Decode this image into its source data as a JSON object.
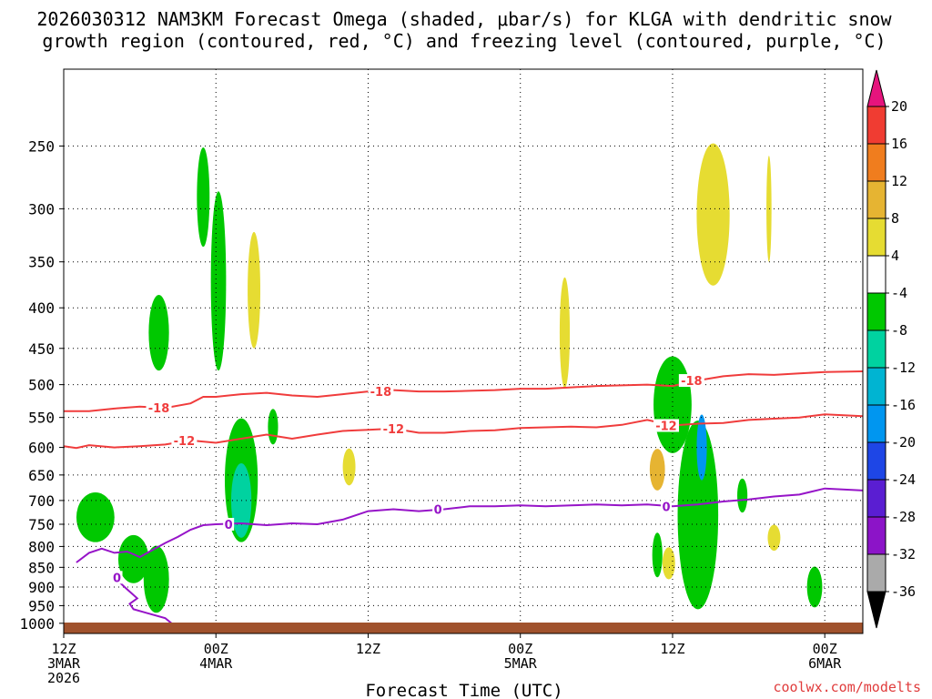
{
  "chart_data": {
    "type": "time-height-cross-section",
    "title_line1": "2026030312 NAM3KM Forecast Omega (shaded, μbar/s) for KLGA with dendritic snow",
    "title_line2": "growth region (contoured, red, °C) and freezing level (contoured, purple, °C)",
    "xlabel": "Forecast Time (UTC)",
    "ylabel": "",
    "credit": "coolwx.com/modelts",
    "x_range_hours": [
      0,
      63
    ],
    "y_range_hpa": [
      1030,
      200
    ],
    "y_ticks": [
      250,
      300,
      350,
      400,
      450,
      500,
      550,
      600,
      650,
      700,
      750,
      800,
      850,
      900,
      950,
      1000
    ],
    "x_ticks": [
      {
        "hour": 0,
        "lines": [
          "12Z",
          "3MAR",
          "2026"
        ]
      },
      {
        "hour": 12,
        "lines": [
          "00Z",
          "4MAR"
        ]
      },
      {
        "hour": 24,
        "lines": [
          "12Z"
        ]
      },
      {
        "hour": 36,
        "lines": [
          "00Z",
          "5MAR"
        ]
      },
      {
        "hour": 48,
        "lines": [
          "12Z"
        ]
      },
      {
        "hour": 60,
        "lines": [
          "00Z",
          "6MAR"
        ]
      }
    ],
    "colorbar": {
      "labels": [
        "20",
        "16",
        "12",
        "8",
        "4",
        "-4",
        "-8",
        "-12",
        "-16",
        "-20",
        "-24",
        "-28",
        "-32",
        "-36"
      ],
      "colors": [
        "#f03c32",
        "#f07d1e",
        "#e6b432",
        "#e6dc32",
        "#ffffff",
        "#00c800",
        "#00d2a0",
        "#00b4d2",
        "#0096f0",
        "#1e46e6",
        "#5a1ed2",
        "#8c14c8",
        "#aaaaaa",
        "#000000"
      ],
      "top_arrow_color": "#e6147d",
      "bottom_arrow_color": "#000000"
    },
    "series": [
      {
        "name": "-18 C (DGZ top)",
        "color": "#f03c3c",
        "label": "-18",
        "label_at_hours": [
          7.5,
          25,
          49.5
        ],
        "hours": [
          0,
          2,
          4,
          6,
          8,
          10,
          11,
          12,
          14,
          16,
          18,
          20,
          22,
          24,
          26,
          28,
          30,
          32,
          34,
          36,
          38,
          40,
          42,
          44,
          46,
          48,
          50,
          52,
          54,
          56,
          58,
          60,
          63
        ],
        "hpa": [
          540,
          540,
          536,
          533,
          535,
          528,
          518,
          518,
          514,
          512,
          516,
          518,
          514,
          510,
          508,
          510,
          510,
          509,
          508,
          506,
          506,
          504,
          502,
          501,
          500,
          502,
          494,
          488,
          485,
          486,
          484,
          482,
          481
        ]
      },
      {
        "name": "-12 C (DGZ bottom)",
        "color": "#f03c3c",
        "label": "-12",
        "label_at_hours": [
          9.5,
          26,
          47.5
        ],
        "hours": [
          0,
          1,
          2,
          4,
          6,
          8,
          10,
          12,
          14,
          16,
          18,
          20,
          22,
          24,
          26,
          28,
          30,
          32,
          34,
          36,
          38,
          40,
          42,
          44,
          46,
          48,
          50,
          52,
          54,
          56,
          58,
          60,
          63
        ],
        "hpa": [
          598,
          601,
          596,
          600,
          598,
          595,
          588,
          592,
          585,
          578,
          585,
          578,
          572,
          570,
          568,
          575,
          575,
          572,
          571,
          567,
          566,
          565,
          566,
          562,
          554,
          563,
          560,
          559,
          554,
          552,
          550,
          545,
          548
        ]
      },
      {
        "name": "0 C (freezing level)",
        "color": "#9614c8",
        "label": "0",
        "label_at_hours": [
          13,
          29.5,
          47.5
        ],
        "hours": [
          1,
          2,
          3,
          4,
          5,
          6,
          7,
          8,
          9,
          10,
          11,
          12,
          14,
          16,
          18,
          20,
          22,
          24,
          26,
          28,
          30,
          32,
          34,
          36,
          38,
          40,
          42,
          44,
          46,
          48,
          50,
          52,
          54,
          56,
          58,
          60,
          63
        ],
        "hpa": [
          838,
          815,
          805,
          815,
          812,
          825,
          808,
          792,
          778,
          762,
          752,
          750,
          748,
          752,
          748,
          750,
          740,
          722,
          718,
          722,
          718,
          712,
          712,
          710,
          712,
          710,
          708,
          710,
          708,
          712,
          708,
          702,
          698,
          692,
          688,
          676,
          680
        ]
      },
      {
        "name": "0 C (near-surface)",
        "color": "#9614c8",
        "label": "0",
        "label_at_hours": [
          4.2
        ],
        "hours": [
          1.5,
          3,
          5,
          7,
          8.5,
          8,
          6.5,
          5.5,
          5.2,
          5.8,
          4.8,
          4
        ],
        "hpa": [
          1020,
          1012,
          1010,
          1008,
          1000,
          985,
          970,
          960,
          945,
          930,
          900,
          875
        ]
      }
    ],
    "shaded_regions": [
      {
        "kind": "updraft",
        "level": "-8",
        "hour": 2.5,
        "hpa": 735,
        "dh": 1.5,
        "dp": 55
      },
      {
        "kind": "updraft",
        "level": "-8",
        "hour": 5.5,
        "hpa": 830,
        "dh": 1.2,
        "dp": 60
      },
      {
        "kind": "updraft",
        "level": "-8",
        "hour": 7.3,
        "hpa": 880,
        "dh": 1.0,
        "dp": 90
      },
      {
        "kind": "updraft",
        "level": "-8",
        "hour": 7.5,
        "hpa": 430,
        "dh": 0.8,
        "dp": 50
      },
      {
        "kind": "updraft",
        "level": "-8",
        "hour": 11.0,
        "hpa": 290,
        "dh": 0.5,
        "dp": 45
      },
      {
        "kind": "updraft",
        "level": "-8",
        "hour": 14.0,
        "hpa": 660,
        "dh": 1.3,
        "dp": 130
      },
      {
        "kind": "updraft",
        "level": "-12",
        "hour": 14.0,
        "hpa": 700,
        "dh": 0.8,
        "dp": 80
      },
      {
        "kind": "updraft",
        "level": "-8",
        "hour": 12.2,
        "hpa": 370,
        "dh": 0.6,
        "dp": 110
      },
      {
        "kind": "updraft",
        "level": "-8",
        "hour": 16.5,
        "hpa": 565,
        "dh": 0.4,
        "dp": 30
      },
      {
        "kind": "downdraft",
        "level": "4",
        "hour": 15.0,
        "hpa": 380,
        "dh": 0.5,
        "dp": 70
      },
      {
        "kind": "downdraft",
        "level": "4",
        "hour": 22.5,
        "hpa": 635,
        "dh": 0.5,
        "dp": 35
      },
      {
        "kind": "downdraft",
        "level": "4",
        "hour": 39.5,
        "hpa": 430,
        "dh": 0.4,
        "dp": 75
      },
      {
        "kind": "updraft",
        "level": "-8",
        "hour": 48.0,
        "hpa": 530,
        "dh": 1.5,
        "dp": 80
      },
      {
        "kind": "updraft",
        "level": "-8",
        "hour": 50.0,
        "hpa": 730,
        "dh": 1.6,
        "dp": 230
      },
      {
        "kind": "updraft",
        "level": "-16",
        "hour": 50.3,
        "hpa": 600,
        "dh": 0.4,
        "dp": 60
      },
      {
        "kind": "downdraft",
        "level": "4",
        "hour": 51.2,
        "hpa": 305,
        "dh": 1.3,
        "dp": 70
      },
      {
        "kind": "downdraft",
        "level": "8",
        "hour": 46.8,
        "hpa": 640,
        "dh": 0.6,
        "dp": 40
      },
      {
        "kind": "updraft",
        "level": "-8",
        "hour": 46.8,
        "hpa": 820,
        "dh": 0.4,
        "dp": 55
      },
      {
        "kind": "downdraft",
        "level": "4",
        "hour": 47.7,
        "hpa": 840,
        "dh": 0.5,
        "dp": 40
      },
      {
        "kind": "updraft",
        "level": "-8",
        "hour": 53.5,
        "hpa": 690,
        "dh": 0.4,
        "dp": 35
      },
      {
        "kind": "downdraft",
        "level": "4",
        "hour": 56.0,
        "hpa": 780,
        "dh": 0.5,
        "dp": 30
      },
      {
        "kind": "updraft",
        "level": "-8",
        "hour": 59.2,
        "hpa": 900,
        "dh": 0.6,
        "dp": 55
      },
      {
        "kind": "downdraft",
        "level": "4",
        "hour": 55.6,
        "hpa": 300,
        "dh": 0.2,
        "dp": 50
      }
    ]
  }
}
